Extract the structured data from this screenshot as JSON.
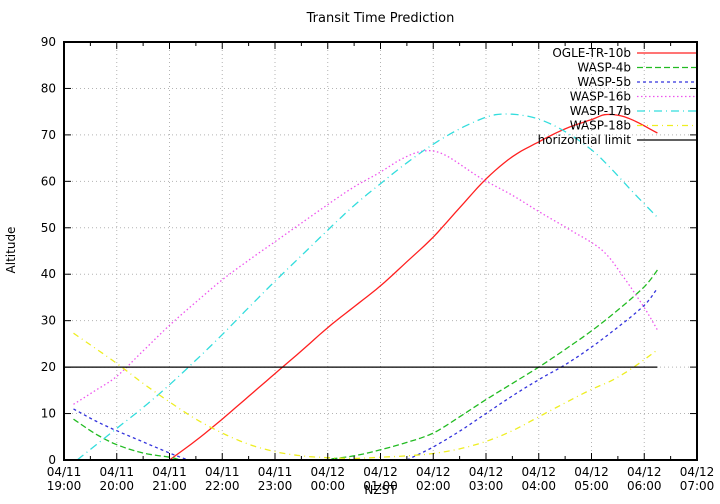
{
  "title": "Transit Time Prediction",
  "chart_data": {
    "type": "line",
    "title": "Transit Time Prediction",
    "xlabel": "NZST",
    "ylabel": "Altitude",
    "ylim": [
      0,
      90
    ],
    "y_ticks": [
      0,
      10,
      20,
      30,
      40,
      50,
      60,
      70,
      80,
      90
    ],
    "x_span_hours": 12,
    "x_ticks": [
      {
        "date": "04/11",
        "time": "19:00"
      },
      {
        "date": "04/11",
        "time": "20:00"
      },
      {
        "date": "04/11",
        "time": "21:00"
      },
      {
        "date": "04/11",
        "time": "22:00"
      },
      {
        "date": "04/11",
        "time": "23:00"
      },
      {
        "date": "04/12",
        "time": "00:00"
      },
      {
        "date": "04/12",
        "time": "01:00"
      },
      {
        "date": "04/12",
        "time": "02:00"
      },
      {
        "date": "04/12",
        "time": "03:00"
      },
      {
        "date": "04/12",
        "time": "04:00"
      },
      {
        "date": "04/12",
        "time": "05:00"
      },
      {
        "date": "04/12",
        "time": "06:00"
      },
      {
        "date": "04/12",
        "time": "07:00"
      }
    ],
    "grid": true,
    "legend_position": "top-right-inside",
    "series": [
      {
        "name": "OGLE-TR-10b",
        "color": "#ff2020",
        "line_style": "solid",
        "segments": [
          [
            [
              2.0,
              0
            ],
            [
              2.5,
              4.2
            ],
            [
              3.0,
              8.8
            ],
            [
              3.5,
              13.7
            ],
            [
              4.0,
              18.6
            ],
            [
              4.5,
              23.5
            ],
            [
              5.0,
              28.5
            ],
            [
              5.5,
              33.0
            ],
            [
              6.0,
              37.5
            ],
            [
              6.5,
              42.7
            ],
            [
              7.0,
              48.0
            ],
            [
              7.5,
              54.3
            ],
            [
              8.0,
              60.5
            ],
            [
              8.5,
              65.3
            ],
            [
              9.0,
              68.5
            ],
            [
              9.5,
              71.3
            ],
            [
              10.0,
              73.3
            ],
            [
              10.3,
              74.4
            ],
            [
              10.7,
              73.6
            ],
            [
              11.25,
              70.4
            ]
          ]
        ]
      },
      {
        "name": "WASP-4b",
        "color": "#22bb22",
        "line_style": "dashed",
        "segments": [
          [
            [
              0.18,
              8.8
            ],
            [
              0.6,
              5.6
            ],
            [
              1.0,
              3.3
            ],
            [
              1.5,
              1.5
            ],
            [
              2.0,
              0.6
            ],
            [
              2.2,
              0
            ]
          ],
          [
            [
              4.9,
              0
            ],
            [
              5.5,
              0.9
            ],
            [
              6.0,
              2.2
            ],
            [
              6.5,
              3.8
            ],
            [
              7.0,
              5.8
            ],
            [
              7.5,
              9.3
            ],
            [
              8.0,
              13.0
            ],
            [
              8.5,
              16.5
            ],
            [
              9.0,
              20.0
            ],
            [
              9.5,
              23.8
            ],
            [
              10.0,
              27.8
            ],
            [
              10.5,
              32.3
            ],
            [
              11.0,
              37.3
            ],
            [
              11.25,
              40.9
            ]
          ]
        ]
      },
      {
        "name": "WASP-5b",
        "color": "#3333dd",
        "line_style": "short-dash",
        "segments": [
          [
            [
              0.18,
              11.0
            ],
            [
              0.6,
              8.4
            ],
            [
              1.0,
              6.3
            ],
            [
              1.5,
              3.9
            ],
            [
              2.0,
              1.5
            ],
            [
              2.35,
              0
            ]
          ],
          [
            [
              6.5,
              0
            ],
            [
              7.0,
              2.8
            ],
            [
              7.5,
              6.2
            ],
            [
              8.0,
              10.0
            ],
            [
              8.5,
              13.8
            ],
            [
              9.0,
              17.3
            ],
            [
              9.5,
              20.5
            ],
            [
              10.0,
              24.3
            ],
            [
              10.5,
              28.6
            ],
            [
              11.0,
              33.3
            ],
            [
              11.25,
              37.0
            ]
          ]
        ]
      },
      {
        "name": "WASP-16b",
        "color": "#ee55ee",
        "line_style": "dotted",
        "segments": [
          [
            [
              0.18,
              12.0
            ],
            [
              0.6,
              15.0
            ],
            [
              1.0,
              18.0
            ],
            [
              1.5,
              23.5
            ],
            [
              2.0,
              29.0
            ],
            [
              2.5,
              34.0
            ],
            [
              3.0,
              38.8
            ],
            [
              3.5,
              43.0
            ],
            [
              4.0,
              47.0
            ],
            [
              4.5,
              51.0
            ],
            [
              5.0,
              55.0
            ],
            [
              5.5,
              58.8
            ],
            [
              6.0,
              62.0
            ],
            [
              6.4,
              64.8
            ],
            [
              6.8,
              66.5
            ],
            [
              7.2,
              65.8
            ],
            [
              7.9,
              60.7
            ],
            [
              8.5,
              57.0
            ],
            [
              9.0,
              53.5
            ],
            [
              9.6,
              49.5
            ],
            [
              10.2,
              45.2
            ],
            [
              10.6,
              39.5
            ],
            [
              11.0,
              32.8
            ],
            [
              11.25,
              28.0
            ]
          ]
        ]
      },
      {
        "name": "WASP-17b",
        "color": "#33dddd",
        "line_style": "dash-dot",
        "segments": [
          [
            [
              0.25,
              0
            ],
            [
              1.0,
              6.8
            ],
            [
              1.5,
              11.3
            ],
            [
              2.0,
              16.2
            ],
            [
              2.5,
              21.5
            ],
            [
              3.0,
              27.0
            ],
            [
              3.5,
              32.8
            ],
            [
              4.0,
              38.5
            ],
            [
              4.5,
              44.0
            ],
            [
              5.0,
              49.5
            ],
            [
              5.5,
              54.8
            ],
            [
              6.0,
              59.5
            ],
            [
              6.5,
              64.0
            ],
            [
              7.0,
              68.0
            ],
            [
              7.5,
              71.3
            ],
            [
              8.0,
              73.8
            ],
            [
              8.35,
              74.5
            ],
            [
              8.8,
              74.0
            ],
            [
              9.2,
              72.5
            ],
            [
              9.6,
              70.0
            ],
            [
              10.0,
              66.8
            ],
            [
              10.35,
              63.0
            ],
            [
              10.8,
              57.5
            ],
            [
              11.28,
              51.9
            ]
          ]
        ]
      },
      {
        "name": "WASP-18b",
        "color": "#eeee22",
        "line_style": "dash-dot-short",
        "segments": [
          [
            [
              0.18,
              27.3
            ],
            [
              0.6,
              24.0
            ],
            [
              1.0,
              20.8
            ],
            [
              1.5,
              16.5
            ],
            [
              2.0,
              12.5
            ],
            [
              2.5,
              8.8
            ],
            [
              3.0,
              5.8
            ],
            [
              3.5,
              3.4
            ],
            [
              4.0,
              1.8
            ],
            [
              4.5,
              0.9
            ],
            [
              5.0,
              0.5
            ],
            [
              5.5,
              0.35
            ],
            [
              6.0,
              0.6
            ],
            [
              6.5,
              0.9
            ],
            [
              7.0,
              1.4
            ],
            [
              7.5,
              2.4
            ],
            [
              8.0,
              4.0
            ],
            [
              8.5,
              6.3
            ],
            [
              9.0,
              9.3
            ],
            [
              9.5,
              12.3
            ],
            [
              10.0,
              15.2
            ],
            [
              10.4,
              17.2
            ],
            [
              10.8,
              20.0
            ],
            [
              11.25,
              23.7
            ]
          ]
        ]
      },
      {
        "name": "horizontial limit",
        "color": "#000000",
        "line_style": "solid",
        "segments": [
          [
            [
              0.0,
              20
            ],
            [
              11.25,
              20
            ]
          ]
        ]
      }
    ],
    "colors": {
      "grid": "#b4b4b4",
      "frame": "#000000",
      "background": "#ffffff"
    }
  }
}
